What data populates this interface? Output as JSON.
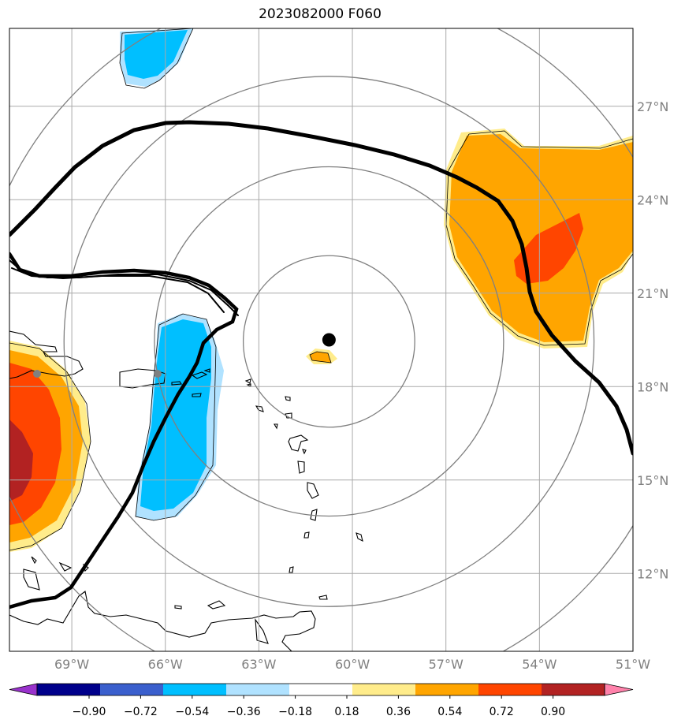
{
  "title": "2023082000 F060",
  "map": {
    "lon_range": [
      -71.0,
      -51.0
    ],
    "lat_range": [
      9.5,
      29.5
    ],
    "lon_ticks": [
      -69,
      -66,
      -63,
      -60,
      -57,
      -54,
      -51
    ],
    "lon_labels": [
      "69°W",
      "66°W",
      "63°W",
      "60°W",
      "57°W",
      "54°W",
      "51°W"
    ],
    "lat_ticks": [
      12,
      15,
      18,
      21,
      24,
      27
    ],
    "lat_labels": [
      "12°N",
      "15°N",
      "18°N",
      "21°N",
      "24°N",
      "27°N"
    ],
    "grid": true,
    "storm_center": {
      "lon": -60.75,
      "lat": 19.5
    },
    "range_rings_deg": [
      2.75,
      5.6,
      8.5,
      11.4
    ],
    "colors": {
      "grid": "#a9a9a9",
      "rings": "#808080",
      "coast": "#000000",
      "contour": "#000000",
      "marker": "#000000",
      "station": "#808080"
    }
  },
  "colorbar": {
    "levels": [
      "−0.90",
      "−0.72",
      "−0.54",
      "−0.36",
      "−0.18",
      "0.18",
      "0.36",
      "0.54",
      "0.72",
      "0.90"
    ],
    "colors": [
      "#9932cc",
      "#00008b",
      "#3a5fcd",
      "#00bfff",
      "#b0e2ff",
      "#ffffff",
      "#ffec8b",
      "#ffa500",
      "#ff4500",
      "#b22222",
      "#ff82ab"
    ]
  }
}
